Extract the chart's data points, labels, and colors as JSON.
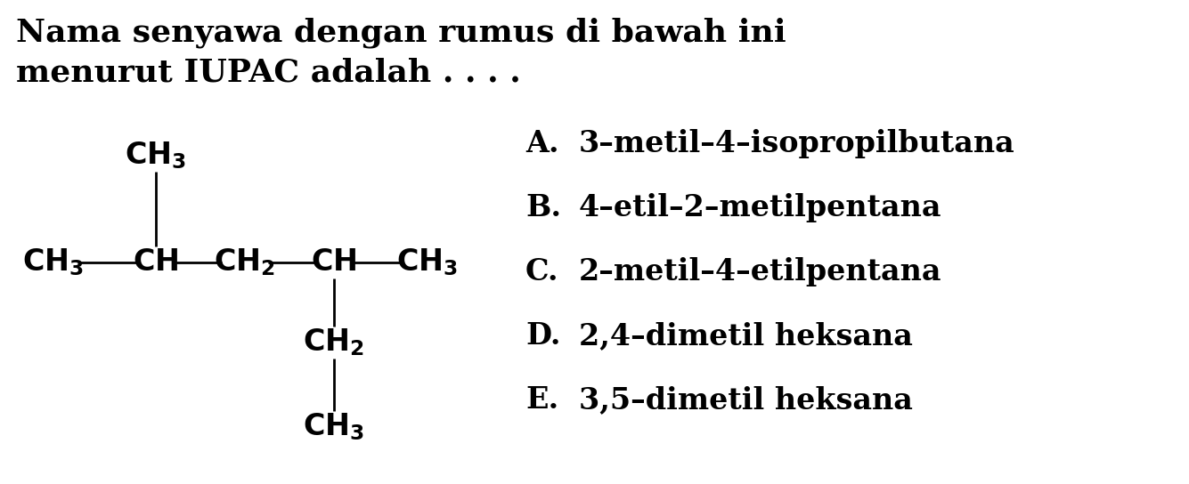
{
  "background_color": "#ffffff",
  "title_line1": "Nama senyawa dengan rumus di bawah ini",
  "title_line2": "menurut IUPAC adalah . . . .",
  "title_fontsize": 26,
  "options": [
    [
      "A.",
      "3–metil–4–isopropilbutana"
    ],
    [
      "B.",
      "4–etil–2–metilpentana"
    ],
    [
      "C.",
      "2–metil–4–etilpentana"
    ],
    [
      "D.",
      "2,4–dimetil heksana"
    ],
    [
      "E.",
      "3,5–dimetil heksana"
    ]
  ],
  "options_fontsize": 24,
  "formula_fontsize": 24,
  "text_color": "#000000",
  "fig_width": 13.35,
  "fig_height": 5.44,
  "dpi": 100
}
